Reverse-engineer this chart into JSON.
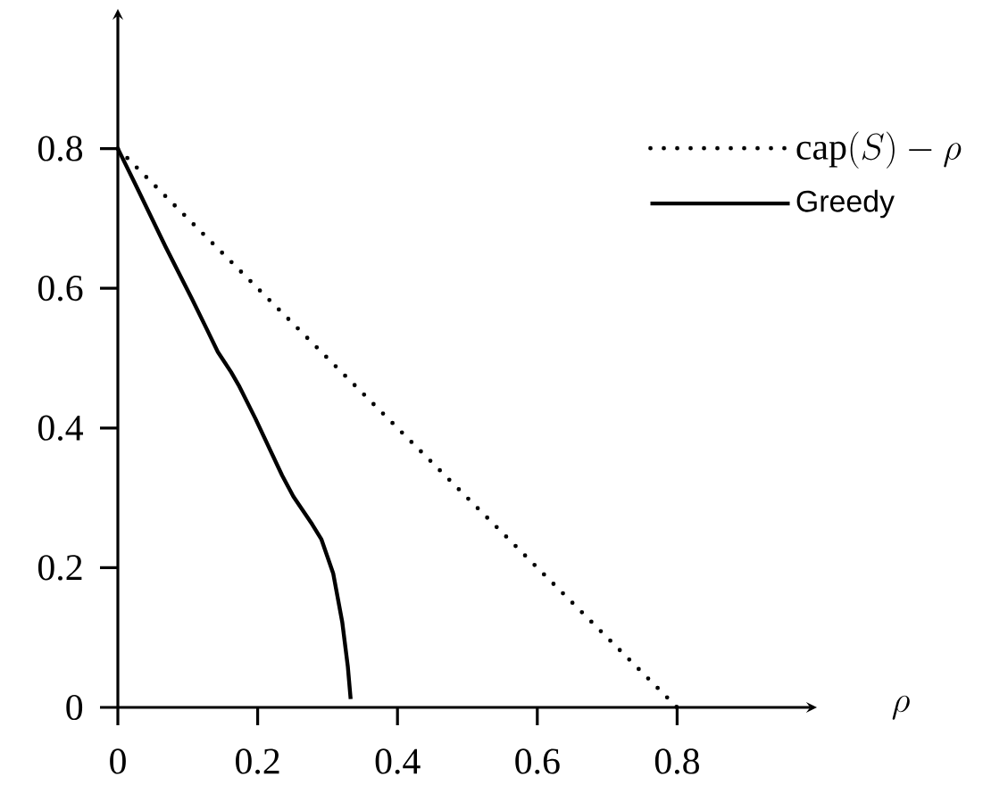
{
  "chart_data": {
    "type": "line",
    "xlabel": "\\rho",
    "xlim": [
      0,
      1.0
    ],
    "ylim": [
      0,
      1.0
    ],
    "xticks": [
      0,
      0.2,
      0.4,
      0.6,
      0.8
    ],
    "yticks": [
      0,
      0.2,
      0.4,
      0.6,
      0.8
    ],
    "legend": "top right",
    "series": [
      {
        "name": "\\mathrm{cap}(S)-\\rho",
        "color": "#000000",
        "line_style": "dotted",
        "x": [
          0,
          0.8
        ],
        "values": [
          0.8,
          0
        ]
      },
      {
        "name": "Greedy",
        "color": "#000000",
        "line_style": "solid",
        "x": [
          0,
          0.025,
          0.068,
          0.106,
          0.127,
          0.143,
          0.162,
          0.173,
          0.197,
          0.235,
          0.251,
          0.278,
          0.291,
          0.308,
          0.321,
          0.329,
          0.333
        ],
        "values": [
          0.8,
          0.749,
          0.66,
          0.585,
          0.542,
          0.509,
          0.48,
          0.461,
          0.413,
          0.332,
          0.302,
          0.262,
          0.241,
          0.192,
          0.122,
          0.058,
          0.012
        ]
      }
    ]
  }
}
